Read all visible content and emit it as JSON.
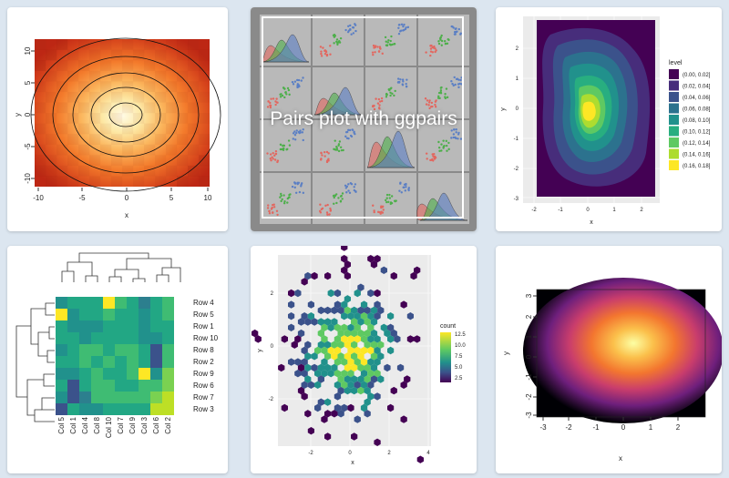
{
  "charts": {
    "contour": {
      "type": "heatmap",
      "xlabel": "x",
      "ylabel": "y",
      "xticks": [
        "-10",
        "-5",
        "0",
        "5",
        "10"
      ],
      "yticks": [
        "10",
        "5",
        "0",
        "-5",
        "-10"
      ],
      "xlim": [
        -11,
        11
      ],
      "ylim": [
        -11,
        11
      ]
    },
    "pairs": {
      "type": "scatter",
      "title": "Pairs plot with ggpairs",
      "series_colors": [
        "#e2675f",
        "#4daf4a",
        "#5b7fc4"
      ]
    },
    "density": {
      "type": "area",
      "xlabel": "x",
      "ylabel": "y",
      "xticks": [
        "-2",
        "-1",
        "0",
        "1",
        "2"
      ],
      "yticks": [
        "2",
        "1",
        "0",
        "-1",
        "-2",
        "-3"
      ],
      "legend_title": "level",
      "legend": [
        "(0.00, 0.02]",
        "(0.02, 0.04]",
        "(0.04, 0.06]",
        "(0.06, 0.08]",
        "(0.08, 0.10]",
        "(0.10, 0.12]",
        "(0.12, 0.14]",
        "(0.14, 0.16]",
        "(0.16, 0.18]"
      ],
      "legend_colors": [
        "#440154",
        "#472d7b",
        "#3b528b",
        "#2c728e",
        "#21918c",
        "#28ae80",
        "#5ec962",
        "#addc30",
        "#fde725"
      ]
    },
    "heatmap": {
      "type": "heatmap",
      "rows": [
        "Row 4",
        "Row 5",
        "Row 1",
        "Row 10",
        "Row 8",
        "Row 2",
        "Row 9",
        "Row 6",
        "Row 7",
        "Row 3"
      ],
      "cols": [
        "Col 5",
        "Col 1",
        "Col 4",
        "Col 8",
        "Col 10",
        "Col 7",
        "Col 9",
        "Col 3",
        "Col 6",
        "Col 2"
      ],
      "values": [
        [
          3,
          4,
          4,
          4,
          8,
          5,
          4,
          2,
          4,
          5
        ],
        [
          8,
          3,
          4,
          4,
          5,
          4,
          4,
          3,
          4,
          5
        ],
        [
          4,
          3,
          3,
          3,
          4,
          4,
          4,
          3,
          4,
          4
        ],
        [
          4,
          4,
          3,
          4,
          4,
          4,
          4,
          3,
          3,
          4
        ],
        [
          3,
          4,
          5,
          5,
          4,
          5,
          5,
          4,
          1,
          5
        ],
        [
          4,
          4,
          5,
          4,
          5,
          4,
          5,
          4,
          1,
          5
        ],
        [
          3,
          3,
          4,
          5,
          4,
          4,
          5,
          8,
          3,
          6
        ],
        [
          4,
          1,
          4,
          5,
          5,
          4,
          4,
          5,
          5,
          6
        ],
        [
          3,
          1,
          2,
          5,
          5,
          5,
          5,
          5,
          6,
          7
        ],
        [
          1,
          4,
          3,
          3,
          4,
          4,
          4,
          4,
          7,
          7
        ]
      ]
    },
    "hexbin": {
      "type": "scatter",
      "xlabel": "x",
      "ylabel": "y",
      "xticks": [
        "-2",
        "0",
        "2",
        "4"
      ],
      "yticks": [
        "2",
        "0",
        "-2"
      ],
      "legend_title": "count",
      "legend": [
        "12.5",
        "10.0",
        "7.5",
        "5.0",
        "2.5"
      ]
    },
    "smooth": {
      "type": "heatmap",
      "xlabel": "x",
      "ylabel": "y",
      "xticks": [
        "-3",
        "-2",
        "-1",
        "0",
        "1",
        "2"
      ],
      "yticks": [
        "3",
        "2",
        "1",
        "0",
        "-1",
        "-2",
        "-3"
      ]
    }
  }
}
